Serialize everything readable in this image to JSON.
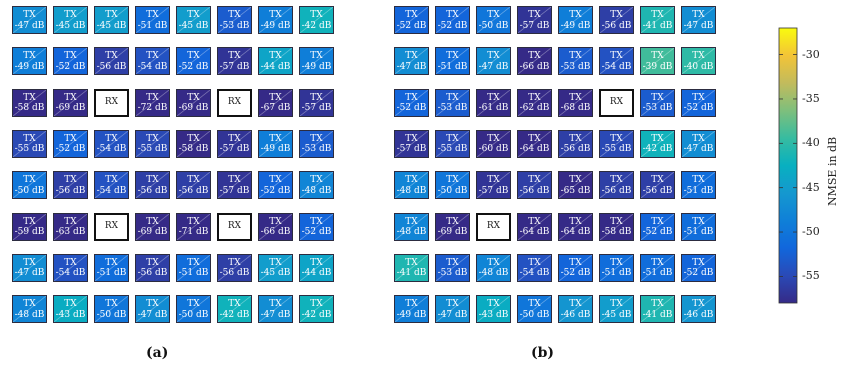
{
  "chart_data": {
    "type": "heatmap",
    "colormap": "parula",
    "clim": [
      -58,
      -27
    ],
    "rx_label": "RX",
    "tx_label": "TX",
    "unit": "dB",
    "panels": [
      {
        "label": "(a)",
        "cells": [
          [
            -47,
            -45,
            -45,
            -51,
            -45,
            -53,
            -49,
            -42
          ],
          [
            -49,
            -52,
            -56,
            -54,
            -52,
            -57,
            -44,
            -49
          ],
          [
            -58,
            -69,
            "RX",
            -72,
            -69,
            "RX",
            -67,
            -57
          ],
          [
            -55,
            -52,
            -54,
            -55,
            -58,
            -57,
            -49,
            -53
          ],
          [
            -50,
            -56,
            -54,
            -56,
            -56,
            -57,
            -52,
            -48
          ],
          [
            -59,
            -63,
            "RX",
            -69,
            -71,
            "RX",
            -66,
            -52
          ],
          [
            -47,
            -54,
            -51,
            -56,
            -51,
            -56,
            -45,
            -44
          ],
          [
            -48,
            -43,
            -50,
            -47,
            -50,
            -42,
            -47,
            -42
          ]
        ]
      },
      {
        "label": "(b)",
        "cells": [
          [
            -52,
            -52,
            -50,
            -57,
            -49,
            -56,
            -41,
            -47
          ],
          [
            -47,
            -51,
            -47,
            -66,
            -53,
            -54,
            -39,
            -40
          ],
          [
            -52,
            -53,
            -61,
            -62,
            -68,
            "RX",
            -53,
            -52
          ],
          [
            -57,
            -55,
            -60,
            -64,
            -56,
            -55,
            -42,
            -47
          ],
          [
            -48,
            -50,
            -57,
            -56,
            -65,
            -56,
            -56,
            -51
          ],
          [
            -48,
            -69,
            "RX",
            -64,
            -64,
            -58,
            -52,
            -51
          ],
          [
            -41,
            -53,
            -48,
            -54,
            -52,
            -51,
            -51,
            -52
          ],
          [
            -49,
            -47,
            -43,
            -50,
            -46,
            -45,
            -41,
            -46
          ]
        ]
      }
    ],
    "colorbar": {
      "label": "NMSE in dB",
      "ticks": [
        -30,
        -35,
        -40,
        -45,
        -50,
        -55
      ]
    }
  }
}
